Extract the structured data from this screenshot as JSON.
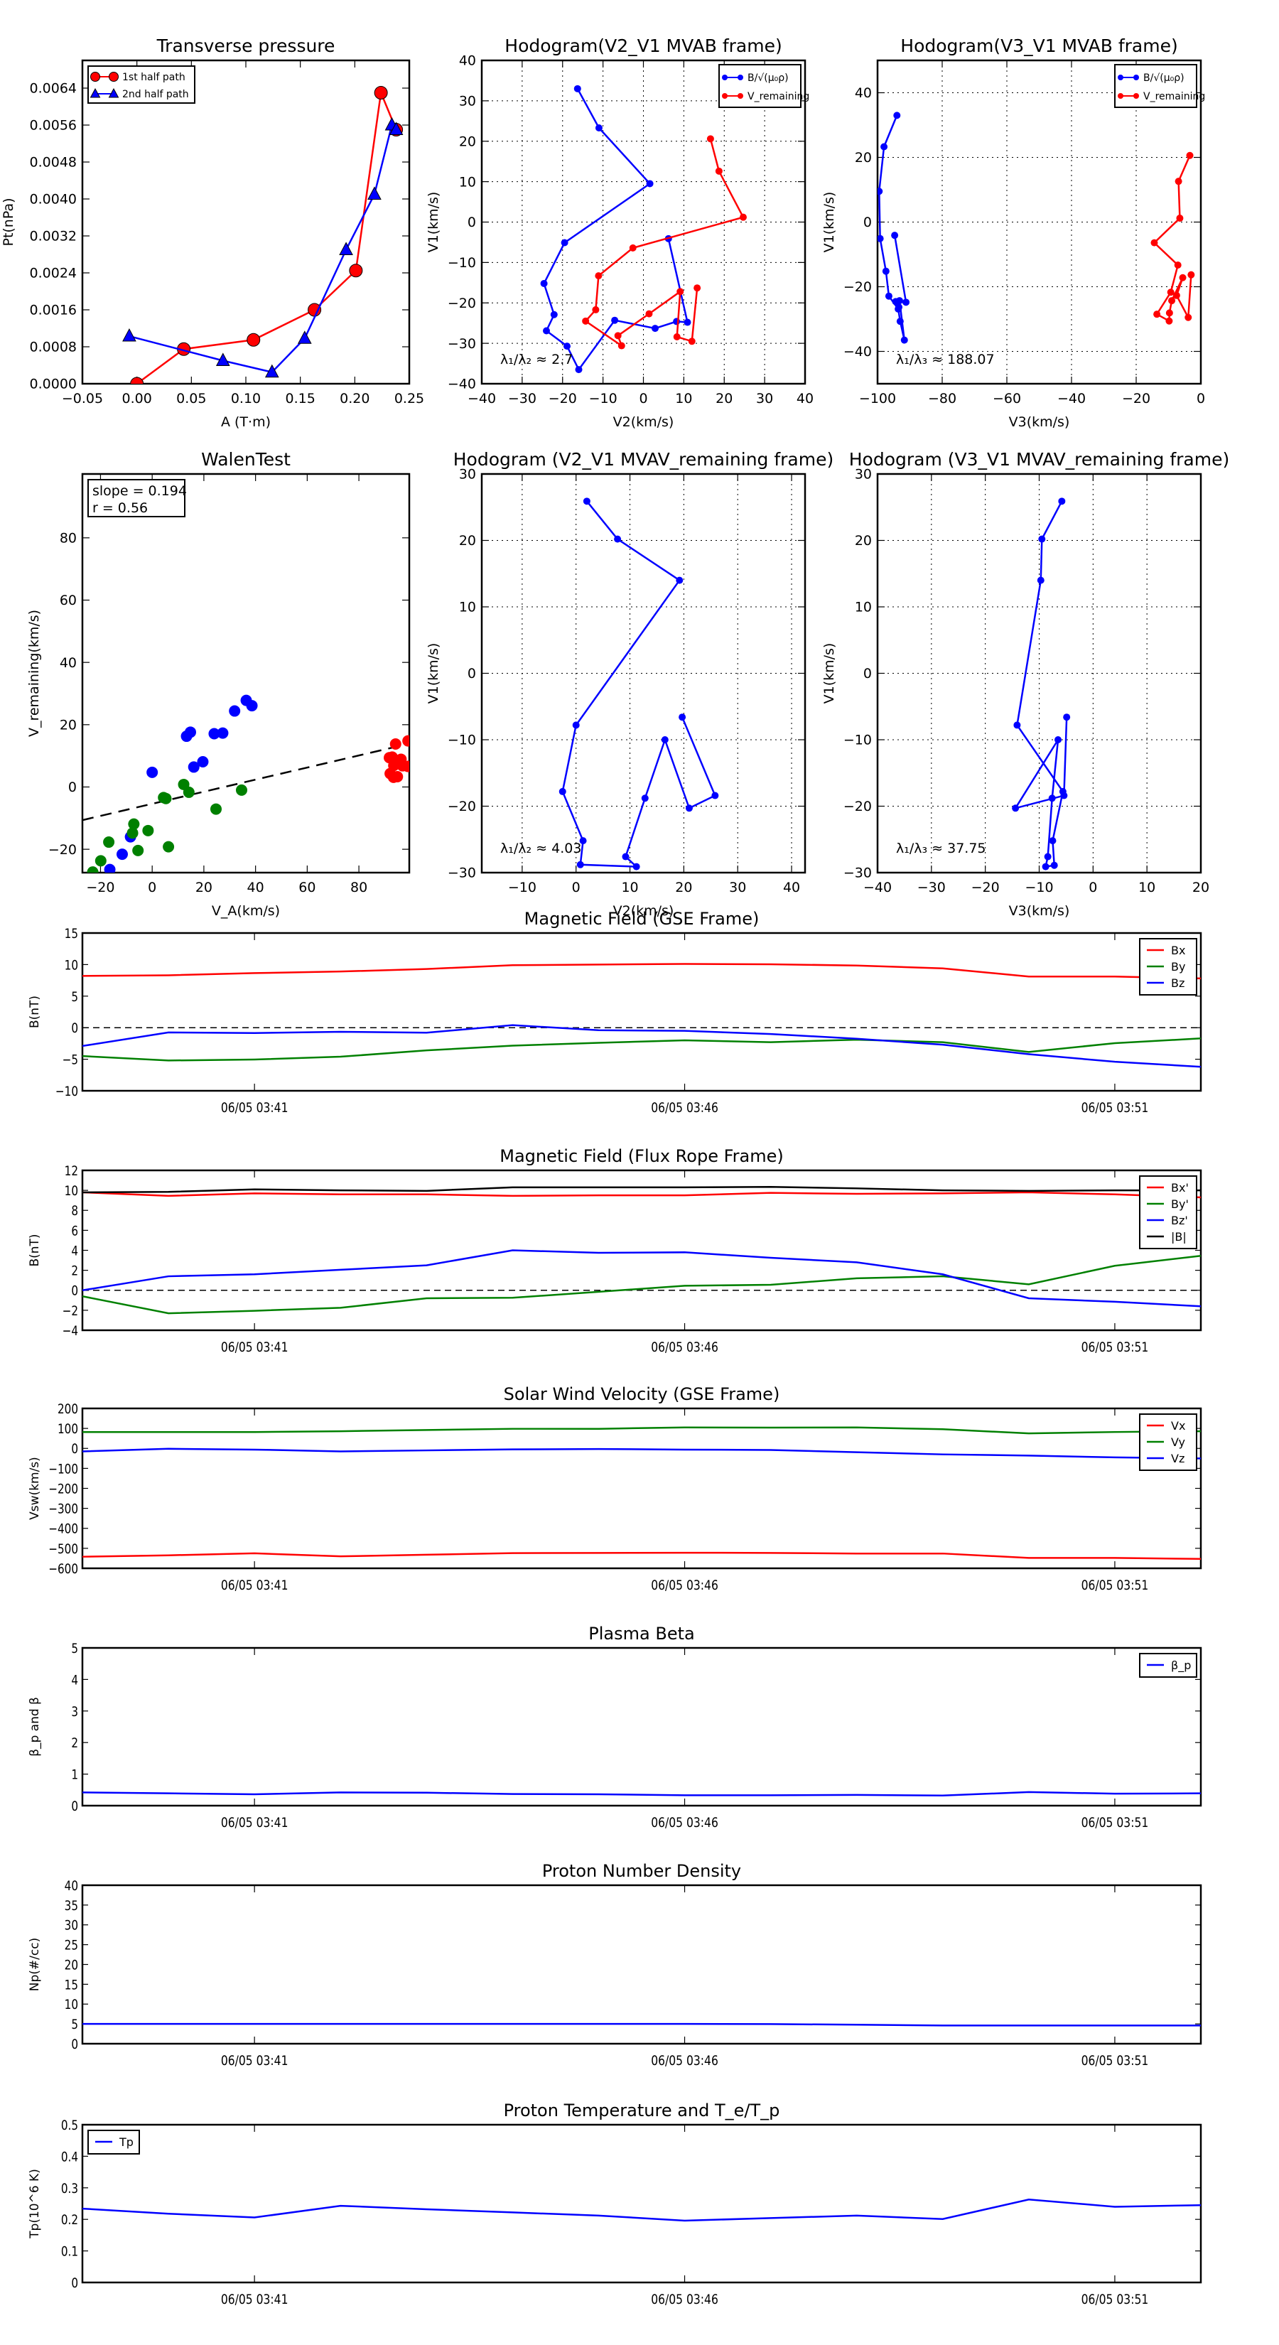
{
  "figure": {
    "time_ticks": [
      "06/05 03:41",
      "06/05 03:46",
      "06/05 03:51"
    ]
  },
  "chart_data": [
    {
      "id": "transverse-pressure",
      "type": "line",
      "title": "Transverse pressure",
      "xlabel": "A (T·m)",
      "ylabel": "Pt(nPa)",
      "xlim": [
        -0.05,
        0.25
      ],
      "ylim": [
        0,
        0.007
      ],
      "xticks": [
        -0.05,
        0.0,
        0.05,
        0.1,
        0.15,
        0.2,
        0.25
      ],
      "xtick_labels": [
        "−0.05",
        "0.00",
        "0.05",
        "0.10",
        "0.15",
        "0.20",
        "0.25"
      ],
      "yticks": [
        0,
        0.0008,
        0.0016,
        0.0024,
        0.0032,
        0.004,
        0.0048,
        0.0056,
        0.0064
      ],
      "ytick_labels": [
        "0.0000",
        "0.0008",
        "0.0016",
        "0.0024",
        "0.0032",
        "0.0040",
        "0.0048",
        "0.0056",
        "0.0064"
      ],
      "grid": false,
      "legend": "top-left",
      "series": [
        {
          "name": "1st half path",
          "color": "#ff0000",
          "marker": "circle",
          "x": [
            0.0,
            0.043,
            0.107,
            0.163,
            0.201,
            0.224,
            0.238
          ],
          "y": [
            0.0,
            0.00075,
            0.00095,
            0.0016,
            0.00245,
            0.0063,
            0.0055
          ]
        },
        {
          "name": "2nd half path",
          "color": "#0000ff",
          "marker": "triangle",
          "x": [
            -0.007,
            0.079,
            0.124,
            0.154,
            0.192,
            0.218,
            0.234,
            0.238
          ],
          "y": [
            0.00103,
            0.0005,
            0.00025,
            0.00098,
            0.0029,
            0.0041,
            0.0056,
            0.0055
          ]
        }
      ]
    },
    {
      "id": "hodogram-v2v1-mvab",
      "type": "line",
      "title": "Hodogram(V2_V1 MVAB frame)",
      "xlabel": "V2(km/s)",
      "ylabel": "V1(km/s)",
      "xlim": [
        -40,
        40
      ],
      "ylim": [
        -40,
        40
      ],
      "xticks": [
        -40,
        -30,
        -20,
        -10,
        0,
        10,
        20,
        30,
        40
      ],
      "yticks": [
        -40,
        -30,
        -20,
        -10,
        0,
        10,
        20,
        30,
        40
      ],
      "grid": true,
      "legend": "top-right",
      "annotation": "λ₁/λ₂ ≈ 2.7",
      "series": [
        {
          "name": "B/√(μ₀ρ)",
          "color": "#0000ff",
          "marker": "dot",
          "x": [
            -16.3,
            -11.0,
            1.6,
            -19.5,
            -24.6,
            -22.1,
            -24.0,
            -18.9,
            -16.0,
            -7.1,
            2.9,
            8.2,
            10.9,
            6.2
          ],
          "y": [
            33.0,
            23.3,
            9.5,
            -5.1,
            -15.2,
            -22.9,
            -26.9,
            -30.7,
            -36.5,
            -24.3,
            -26.3,
            -24.6,
            -24.8,
            -4.1
          ]
        },
        {
          "name": "V_remaining",
          "color": "#ff0000",
          "marker": "dot",
          "x": [
            16.6,
            18.7,
            24.7,
            -2.6,
            -11.1,
            -11.8,
            -14.3,
            -5.4,
            -6.3,
            1.4,
            9.1,
            8.3,
            12.0,
            13.3
          ],
          "y": [
            20.6,
            12.6,
            1.2,
            -6.4,
            -13.3,
            -21.7,
            -24.5,
            -30.6,
            -28.1,
            -22.7,
            -17.2,
            -28.4,
            -29.5,
            -16.3
          ]
        }
      ]
    },
    {
      "id": "hodogram-v3v1-mvab",
      "type": "line",
      "title": "Hodogram(V3_V1 MVAB frame)",
      "xlabel": "V3(km/s)",
      "ylabel": "V1(km/s)",
      "xlim": [
        -100,
        0
      ],
      "ylim": [
        -50,
        50
      ],
      "xticks": [
        -100,
        -80,
        -60,
        -40,
        -20,
        0
      ],
      "yticks": [
        -40,
        -20,
        0,
        20,
        40
      ],
      "grid": true,
      "legend": "top-right",
      "annotation": "λ₁/λ₃ ≈ 188.07",
      "series": [
        {
          "name": "B/√(μ₀ρ)",
          "color": "#0000ff",
          "marker": "dot",
          "x": [
            -94.0,
            -98.0,
            -99.5,
            -99.2,
            -97.4,
            -96.5,
            -93.6,
            -93.0,
            -91.7,
            -93.2,
            -93.4,
            -94.4,
            -91.2,
            -94.7
          ],
          "y": [
            33.0,
            23.3,
            9.5,
            -5.1,
            -15.2,
            -22.9,
            -26.9,
            -30.7,
            -36.5,
            -24.3,
            -26.3,
            -24.6,
            -24.8,
            -4.1
          ]
        },
        {
          "name": "V_remaining",
          "color": "#ff0000",
          "marker": "dot",
          "x": [
            -3.4,
            -6.9,
            -6.5,
            -14.4,
            -7.1,
            -9.3,
            -13.6,
            -9.8,
            -9.7,
            -9.0,
            -5.6,
            -7.5,
            -3.9,
            -3.0
          ],
          "y": [
            20.6,
            12.6,
            1.2,
            -6.4,
            -13.3,
            -21.7,
            -28.5,
            -30.6,
            -28.1,
            -24.3,
            -17.2,
            -22.7,
            -29.5,
            -16.3
          ]
        }
      ]
    },
    {
      "id": "walen-test",
      "type": "scatter",
      "title": "WalenTest",
      "xlabel": "V_A(km/s)",
      "ylabel": "V_remaining(km/s)",
      "xlim": [
        -27,
        99.5
      ],
      "ylim": [
        -27.5,
        100.5
      ],
      "xticks": [
        -20,
        0,
        20,
        40,
        60,
        80
      ],
      "yticks": [
        -20,
        0,
        20,
        40,
        60,
        80
      ],
      "grid": false,
      "annotation_box": {
        "slope_label": "slope = 0.194",
        "r_label": "r = 0.56"
      },
      "fit_line": {
        "slope": 0.194,
        "intercept": -5.4,
        "style": "dashed",
        "color": "#000000"
      },
      "series": [
        {
          "name": "blue",
          "color": "#0000ff",
          "x": [
            0.0,
            13.3,
            14.8,
            16.1,
            19.6,
            24.0,
            27.3,
            31.9,
            36.4,
            38.6,
            -8.4,
            -11.6,
            -16.4
          ],
          "y": [
            4.7,
            16.3,
            17.6,
            6.4,
            8.1,
            17.1,
            17.3,
            24.4,
            27.8,
            26.1,
            -16.0,
            -21.6,
            -26.5
          ]
        },
        {
          "name": "green",
          "color": "#008000",
          "x": [
            12.2,
            14.2,
            4.4,
            5.3,
            24.7,
            34.6,
            -7.1,
            -1.6,
            -7.6,
            -5.5,
            6.3,
            -16.8,
            -19.9,
            -23.0
          ],
          "y": [
            0.8,
            -1.7,
            -3.4,
            -3.7,
            -7.1,
            -1.0,
            -11.9,
            -14.0,
            -14.8,
            -20.4,
            -19.2,
            -17.7,
            -23.7,
            -27.3
          ]
        },
        {
          "name": "red",
          "color": "#ff0000",
          "x": [
            91.8,
            92.9,
            93.5,
            92.1,
            93.4,
            94.9,
            94.2,
            96.3,
            96.9,
            99.0,
            99.0
          ],
          "y": [
            9.4,
            9.6,
            6.9,
            4.3,
            3.1,
            3.3,
            13.8,
            8.9,
            6.8,
            14.8,
            6.6
          ]
        }
      ]
    },
    {
      "id": "hodogram-v2v1-mvav",
      "type": "line",
      "title": "Hodogram (V2_V1 MVAV_remaining frame)",
      "xlabel": "V2(km/s)",
      "ylabel": "V1(km/s)",
      "xlim": [
        -17.5,
        42.5
      ],
      "ylim": [
        -30,
        30
      ],
      "xticks": [
        -10,
        0,
        10,
        20,
        30,
        40
      ],
      "yticks": [
        -30,
        -20,
        -10,
        0,
        10,
        20,
        30
      ],
      "grid": true,
      "annotation": "λ₁/λ₂ ≈ 4.03",
      "series": [
        {
          "name": "B/√(μ₀ρ)",
          "color": "#0000ff",
          "marker": "dot",
          "x": [
            2.0,
            7.7,
            19.2,
            0.0,
            -2.5,
            1.3,
            0.8,
            11.2,
            9.2,
            12.8,
            16.5,
            21.0,
            25.8,
            19.7
          ],
          "y": [
            25.9,
            20.2,
            14.0,
            -7.8,
            -17.8,
            -25.2,
            -28.8,
            -29.1,
            -27.6,
            -18.8,
            -10.0,
            -20.3,
            -18.4,
            -6.6
          ]
        }
      ]
    },
    {
      "id": "hodogram-v3v1-mvav",
      "type": "line",
      "title": "Hodogram (V3_V1 MVAV_remaining frame)",
      "xlabel": "V3(km/s)",
      "ylabel": "V1(km/s)",
      "xlim": [
        -40,
        20
      ],
      "ylim": [
        -30,
        30
      ],
      "xticks": [
        -40,
        -30,
        -20,
        -10,
        0,
        10,
        20
      ],
      "yticks": [
        -30,
        -20,
        -10,
        0,
        10,
        20,
        30
      ],
      "grid": true,
      "annotation": "λ₁/λ₃ ≈ 37.75",
      "series": [
        {
          "name": "B/√(μ₀ρ)",
          "color": "#0000ff",
          "marker": "dot",
          "x": [
            -5.8,
            -9.5,
            -9.7,
            -14.1,
            -5.6,
            -7.5,
            -7.2,
            -8.8,
            -8.4,
            -7.6,
            -6.5,
            -14.4,
            -5.4,
            -4.9
          ],
          "y": [
            25.9,
            20.2,
            14.0,
            -7.8,
            -17.8,
            -25.2,
            -28.9,
            -29.1,
            -27.6,
            -18.8,
            -10.0,
            -20.3,
            -18.4,
            -6.6
          ]
        }
      ]
    },
    {
      "id": "magnetic-field-gse",
      "type": "line",
      "title": "Magnetic Field (GSE Frame)",
      "ylabel": "B(nT)",
      "x_minutes": [
        "03:39",
        "03:40",
        "03:41",
        "03:42",
        "03:43",
        "03:44",
        "03:45",
        "03:46",
        "03:47",
        "03:48",
        "03:49",
        "03:50",
        "03:51",
        "03:52"
      ],
      "ylim": [
        -10,
        15
      ],
      "yticks": [
        -10,
        -5,
        0,
        5,
        10,
        15
      ],
      "zero_line": true,
      "legend": "top-right",
      "series": [
        {
          "name": "Bx",
          "color": "#ff0000",
          "values": [
            8.2,
            8.3,
            8.65,
            8.9,
            9.3,
            9.9,
            10.0,
            10.1,
            10.05,
            9.85,
            9.4,
            8.1,
            8.1,
            7.8
          ]
        },
        {
          "name": "By",
          "color": "#008000",
          "values": [
            -4.5,
            -5.2,
            -5.05,
            -4.6,
            -3.6,
            -2.85,
            -2.4,
            -2.0,
            -2.3,
            -1.9,
            -2.3,
            -3.85,
            -2.45,
            -1.7
          ]
        },
        {
          "name": "Bz",
          "color": "#0000ff",
          "values": [
            -2.9,
            -0.75,
            -0.85,
            -0.65,
            -0.8,
            0.4,
            -0.4,
            -0.5,
            -1.0,
            -1.75,
            -2.7,
            -4.2,
            -5.4,
            -6.2
          ]
        }
      ]
    },
    {
      "id": "magnetic-field-flux-rope",
      "type": "line",
      "title": "Magnetic Field (Flux Rope Frame)",
      "ylabel": "B(nT)",
      "x_minutes": [
        "03:39",
        "03:40",
        "03:41",
        "03:42",
        "03:43",
        "03:44",
        "03:45",
        "03:46",
        "03:47",
        "03:48",
        "03:49",
        "03:50",
        "03:51",
        "03:52"
      ],
      "ylim": [
        -4,
        12
      ],
      "yticks": [
        -4,
        -2,
        0,
        2,
        4,
        6,
        8,
        10,
        12
      ],
      "zero_line": true,
      "legend": "top-right",
      "series": [
        {
          "name": "Bx'",
          "color": "#ff0000",
          "values": [
            9.8,
            9.45,
            9.7,
            9.6,
            9.6,
            9.45,
            9.5,
            9.5,
            9.75,
            9.65,
            9.7,
            9.8,
            9.6,
            9.3
          ]
        },
        {
          "name": "By'",
          "color": "#008000",
          "values": [
            -0.6,
            -2.3,
            -2.05,
            -1.75,
            -0.8,
            -0.75,
            -0.15,
            0.45,
            0.55,
            1.2,
            1.4,
            0.6,
            2.45,
            3.45
          ]
        },
        {
          "name": "Bz'",
          "color": "#0000ff",
          "values": [
            0.0,
            1.4,
            1.6,
            2.05,
            2.5,
            4.0,
            3.75,
            3.8,
            3.25,
            2.8,
            1.6,
            -0.8,
            -1.15,
            -1.6
          ]
        },
        {
          "name": "|B|",
          "color": "#000000",
          "values": [
            9.8,
            9.85,
            10.1,
            10.0,
            9.95,
            10.3,
            10.3,
            10.3,
            10.35,
            10.2,
            10.0,
            9.95,
            10.0,
            10.0
          ]
        }
      ]
    },
    {
      "id": "solar-wind-velocity-gse",
      "type": "line",
      "title": "Solar Wind Velocity (GSE Frame)",
      "ylabel": "Vsw(km/s)",
      "x_minutes": [
        "03:39",
        "03:40",
        "03:41",
        "03:42",
        "03:43",
        "03:44",
        "03:45",
        "03:46",
        "03:47",
        "03:48",
        "03:49",
        "03:50",
        "03:51",
        "03:52"
      ],
      "ylim": [
        -600,
        200
      ],
      "yticks": [
        -600,
        -500,
        -400,
        -300,
        -200,
        -100,
        0,
        100,
        200
      ],
      "legend": "top-right",
      "series": [
        {
          "name": "Vx",
          "color": "#ff0000",
          "values": [
            -542,
            -535,
            -525,
            -540,
            -532,
            -524,
            -523,
            -522,
            -523,
            -526,
            -526,
            -548,
            -548,
            -553
          ]
        },
        {
          "name": "Vy",
          "color": "#008000",
          "values": [
            82,
            82,
            82,
            86,
            92,
            98,
            98,
            105,
            104,
            105,
            96,
            75,
            82,
            86
          ]
        },
        {
          "name": "Vz",
          "color": "#0000ff",
          "values": [
            -15,
            -2,
            -6,
            -15,
            -10,
            -5,
            -3,
            -6,
            -8,
            -19,
            -30,
            -36,
            -45,
            -50
          ]
        }
      ]
    },
    {
      "id": "plasma-beta",
      "type": "line",
      "title": "Plasma Beta",
      "ylabel": "β_p and β",
      "x_minutes": [
        "03:39",
        "03:40",
        "03:41",
        "03:42",
        "03:43",
        "03:44",
        "03:45",
        "03:46",
        "03:47",
        "03:48",
        "03:49",
        "03:50",
        "03:51",
        "03:52"
      ],
      "ylim": [
        0,
        5
      ],
      "yticks": [
        0,
        1,
        2,
        3,
        4,
        5
      ],
      "legend": "top-right",
      "series": [
        {
          "name": "β_p",
          "color": "#0000ff",
          "values": [
            0.42,
            0.39,
            0.36,
            0.42,
            0.41,
            0.37,
            0.36,
            0.33,
            0.33,
            0.34,
            0.32,
            0.43,
            0.38,
            0.39
          ]
        }
      ]
    },
    {
      "id": "proton-number-density",
      "type": "line",
      "title": "Proton Number Density",
      "ylabel": "Np(#/cc)",
      "x_minutes": [
        "03:39",
        "03:40",
        "03:41",
        "03:42",
        "03:43",
        "03:44",
        "03:45",
        "03:46",
        "03:47",
        "03:48",
        "03:49",
        "03:50",
        "03:51",
        "03:52"
      ],
      "ylim": [
        0,
        40
      ],
      "yticks": [
        0,
        5,
        10,
        15,
        20,
        25,
        30,
        35,
        40
      ],
      "series": [
        {
          "name": "Np",
          "color": "#0000ff",
          "values": [
            5.0,
            5.0,
            5.0,
            5.0,
            5.0,
            5.0,
            5.0,
            5.0,
            4.95,
            4.8,
            4.6,
            4.6,
            4.6,
            4.6
          ]
        }
      ]
    },
    {
      "id": "proton-temperature",
      "type": "line",
      "title": "Proton Temperature and T_e/T_p",
      "ylabel": "Tp(10^6 K)",
      "x_minutes": [
        "03:39",
        "03:40",
        "03:41",
        "03:42",
        "03:43",
        "03:44",
        "03:45",
        "03:46",
        "03:47",
        "03:48",
        "03:49",
        "03:50",
        "03:51",
        "03:52"
      ],
      "ylim": [
        0,
        0.5
      ],
      "yticks": [
        0.0,
        0.1,
        0.2,
        0.3,
        0.4,
        0.5
      ],
      "legend": "top-left",
      "series": [
        {
          "name": "Tp",
          "color": "#0000ff",
          "values": [
            0.234,
            0.218,
            0.206,
            0.243,
            0.232,
            0.222,
            0.212,
            0.196,
            0.204,
            0.212,
            0.201,
            0.263,
            0.24,
            0.245
          ]
        }
      ]
    }
  ]
}
